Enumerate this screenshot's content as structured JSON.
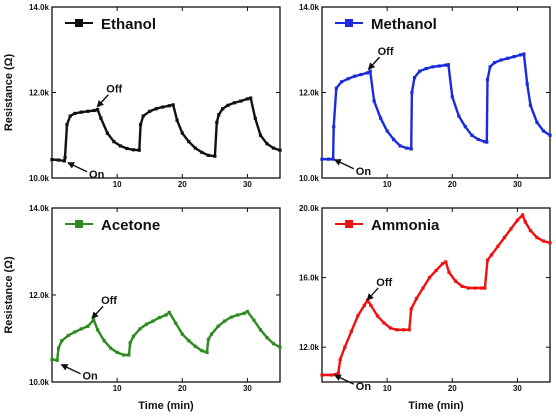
{
  "chart_data": [
    {
      "type": "line",
      "title": "Ethanol",
      "color": "#111111",
      "xlabel": "",
      "ylabel": "Resistance (Ω)",
      "xlim": [
        0,
        35
      ],
      "ylim": [
        10000,
        14000
      ],
      "xticks": [
        {
          "v": 10,
          "label": "10"
        },
        {
          "v": 20,
          "label": "20"
        },
        {
          "v": 30,
          "label": "30"
        }
      ],
      "yticks": [
        {
          "v": 10000,
          "label": "10.0k"
        },
        {
          "v": 12000,
          "label": "12.0k"
        },
        {
          "v": 14000,
          "label": "14.0k"
        }
      ],
      "annotations": [
        {
          "text": "Off",
          "x": 6.8,
          "y": 11620
        },
        {
          "text": "On",
          "x": 2.0,
          "y": 10380
        }
      ],
      "x": [
        0,
        1,
        1.9,
        2.0,
        2.3,
        2.8,
        3.5,
        4.5,
        5.5,
        6.5,
        7.0,
        7.5,
        8.5,
        9.5,
        10.5,
        11.5,
        12.5,
        13.4,
        13.6,
        14.0,
        15.0,
        16.0,
        17.0,
        18.0,
        18.6,
        19.2,
        20,
        21,
        22,
        23,
        24,
        25,
        25.3,
        25.6,
        26.2,
        27,
        28,
        29,
        30,
        30.5,
        31.2,
        32,
        33,
        34,
        35
      ],
      "y": [
        10430,
        10420,
        10400,
        10480,
        11250,
        11450,
        11510,
        11540,
        11560,
        11580,
        11600,
        11400,
        11050,
        10850,
        10750,
        10690,
        10660,
        10650,
        11250,
        11450,
        11560,
        11620,
        11660,
        11690,
        11710,
        11350,
        11050,
        10850,
        10700,
        10600,
        10530,
        10510,
        11300,
        11480,
        11620,
        11700,
        11760,
        11800,
        11850,
        11870,
        11400,
        11000,
        10800,
        10700,
        10650
      ]
    },
    {
      "type": "line",
      "title": "Methanol",
      "color": "#1a2bdd",
      "xlabel": "",
      "ylabel": "",
      "xlim": [
        0,
        35
      ],
      "ylim": [
        10000,
        14000
      ],
      "xticks": [
        {
          "v": 10,
          "label": "10"
        },
        {
          "v": 20,
          "label": "20"
        },
        {
          "v": 30,
          "label": "30"
        }
      ],
      "yticks": [
        {
          "v": 10000,
          "label": "10.0k"
        },
        {
          "v": 12000,
          "label": "12.0k"
        },
        {
          "v": 14000,
          "label": "14.0k"
        }
      ],
      "annotations": [
        {
          "text": "Off",
          "x": 7.0,
          "y": 12500
        },
        {
          "text": "On",
          "x": 1.5,
          "y": 10450
        }
      ],
      "x": [
        0,
        1,
        1.7,
        1.8,
        2.2,
        3.0,
        4.0,
        5.0,
        6.0,
        7.0,
        7.4,
        8.0,
        9.0,
        10,
        11,
        12,
        13,
        13.7,
        13.8,
        14.2,
        15,
        16,
        17,
        18,
        19,
        19.4,
        20,
        21,
        22,
        23,
        24,
        25,
        25.3,
        25.4,
        25.8,
        26.5,
        27.5,
        28.5,
        29.5,
        30.5,
        31.0,
        31.5,
        32,
        33,
        34,
        35
      ],
      "y": [
        10440,
        10440,
        10440,
        11200,
        12100,
        12250,
        12320,
        12380,
        12420,
        12460,
        12500,
        11800,
        11400,
        11100,
        10900,
        10750,
        10700,
        10680,
        12000,
        12350,
        12500,
        12560,
        12600,
        12620,
        12640,
        12650,
        11900,
        11450,
        11200,
        11000,
        10900,
        10850,
        10840,
        12300,
        12600,
        12700,
        12760,
        12800,
        12840,
        12880,
        12900,
        12200,
        11700,
        11300,
        11100,
        11000
      ]
    },
    {
      "type": "line",
      "title": "Acetone",
      "color": "#2e8b22",
      "xlabel": "Time (min)",
      "ylabel": "Resistance (Ω)",
      "xlim": [
        0,
        35
      ],
      "ylim": [
        10000,
        14000
      ],
      "xticks": [
        {
          "v": 10,
          "label": "10"
        },
        {
          "v": 20,
          "label": "20"
        },
        {
          "v": 30,
          "label": "30"
        }
      ],
      "yticks": [
        {
          "v": 10000,
          "label": "10.0k"
        },
        {
          "v": 12000,
          "label": "12.0k"
        },
        {
          "v": 14000,
          "label": "14.0k"
        }
      ],
      "annotations": [
        {
          "text": "Off",
          "x": 6.0,
          "y": 11420
        },
        {
          "text": "On",
          "x": 1.0,
          "y": 10420
        }
      ],
      "x": [
        0,
        0.8,
        1.0,
        1.5,
        2.5,
        3.5,
        4.5,
        5.5,
        6.4,
        7,
        8,
        9,
        10,
        11,
        11.8,
        12.0,
        12.5,
        13.5,
        14.5,
        15.5,
        16.5,
        17.5,
        18,
        19,
        20,
        21,
        22,
        23,
        23.8,
        24.0,
        24.5,
        25.5,
        26.5,
        27.5,
        28.5,
        29.5,
        30,
        31,
        32,
        33,
        34,
        35
      ],
      "y": [
        10520,
        10500,
        10780,
        10950,
        11070,
        11150,
        11220,
        11280,
        11430,
        11200,
        10950,
        10780,
        10680,
        10620,
        10620,
        10900,
        11050,
        11220,
        11330,
        11400,
        11480,
        11540,
        11600,
        11350,
        11100,
        10950,
        10820,
        10720,
        10680,
        10980,
        11100,
        11280,
        11400,
        11490,
        11540,
        11580,
        11620,
        11420,
        11200,
        11020,
        10880,
        10800
      ]
    },
    {
      "type": "line",
      "title": "Ammonia",
      "color": "#ee1111",
      "xlabel": "Time (min)",
      "ylabel": "",
      "xlim": [
        0,
        35
      ],
      "ylim": [
        10000,
        20000
      ],
      "xticks": [
        {
          "v": 10,
          "label": "10"
        },
        {
          "v": 20,
          "label": "20"
        },
        {
          "v": 30,
          "label": "30"
        }
      ],
      "yticks": [
        {
          "v": 12000,
          "label": "12.0k"
        },
        {
          "v": 16000,
          "label": "16.0k"
        },
        {
          "v": 20000,
          "label": "20.0k"
        }
      ],
      "annotations": [
        {
          "text": "Off",
          "x": 6.8,
          "y": 14600
        },
        {
          "text": "On",
          "x": 1.5,
          "y": 10450
        }
      ],
      "x": [
        0,
        1.5,
        2.5,
        2.8,
        3.5,
        4.5,
        5.5,
        6.5,
        7.0,
        7.5,
        8.5,
        9.5,
        10.5,
        11.5,
        12.5,
        13.4,
        13.7,
        14.5,
        15.5,
        16.5,
        17.5,
        18.5,
        19.0,
        19.5,
        20.5,
        21.5,
        22.5,
        23.5,
        24.5,
        25.0,
        25.4,
        26,
        27,
        28,
        29,
        30,
        30.8,
        31.2,
        32,
        33,
        34,
        35
      ],
      "y": [
        10400,
        10400,
        10500,
        11300,
        12000,
        12900,
        13800,
        14400,
        14700,
        14400,
        13800,
        13400,
        13100,
        13000,
        13000,
        13000,
        14200,
        14800,
        15400,
        16000,
        16400,
        16800,
        16900,
        16300,
        15800,
        15500,
        15400,
        15400,
        15400,
        15400,
        17000,
        17300,
        17800,
        18300,
        18800,
        19300,
        19600,
        19200,
        18700,
        18300,
        18100,
        18000
      ]
    }
  ]
}
